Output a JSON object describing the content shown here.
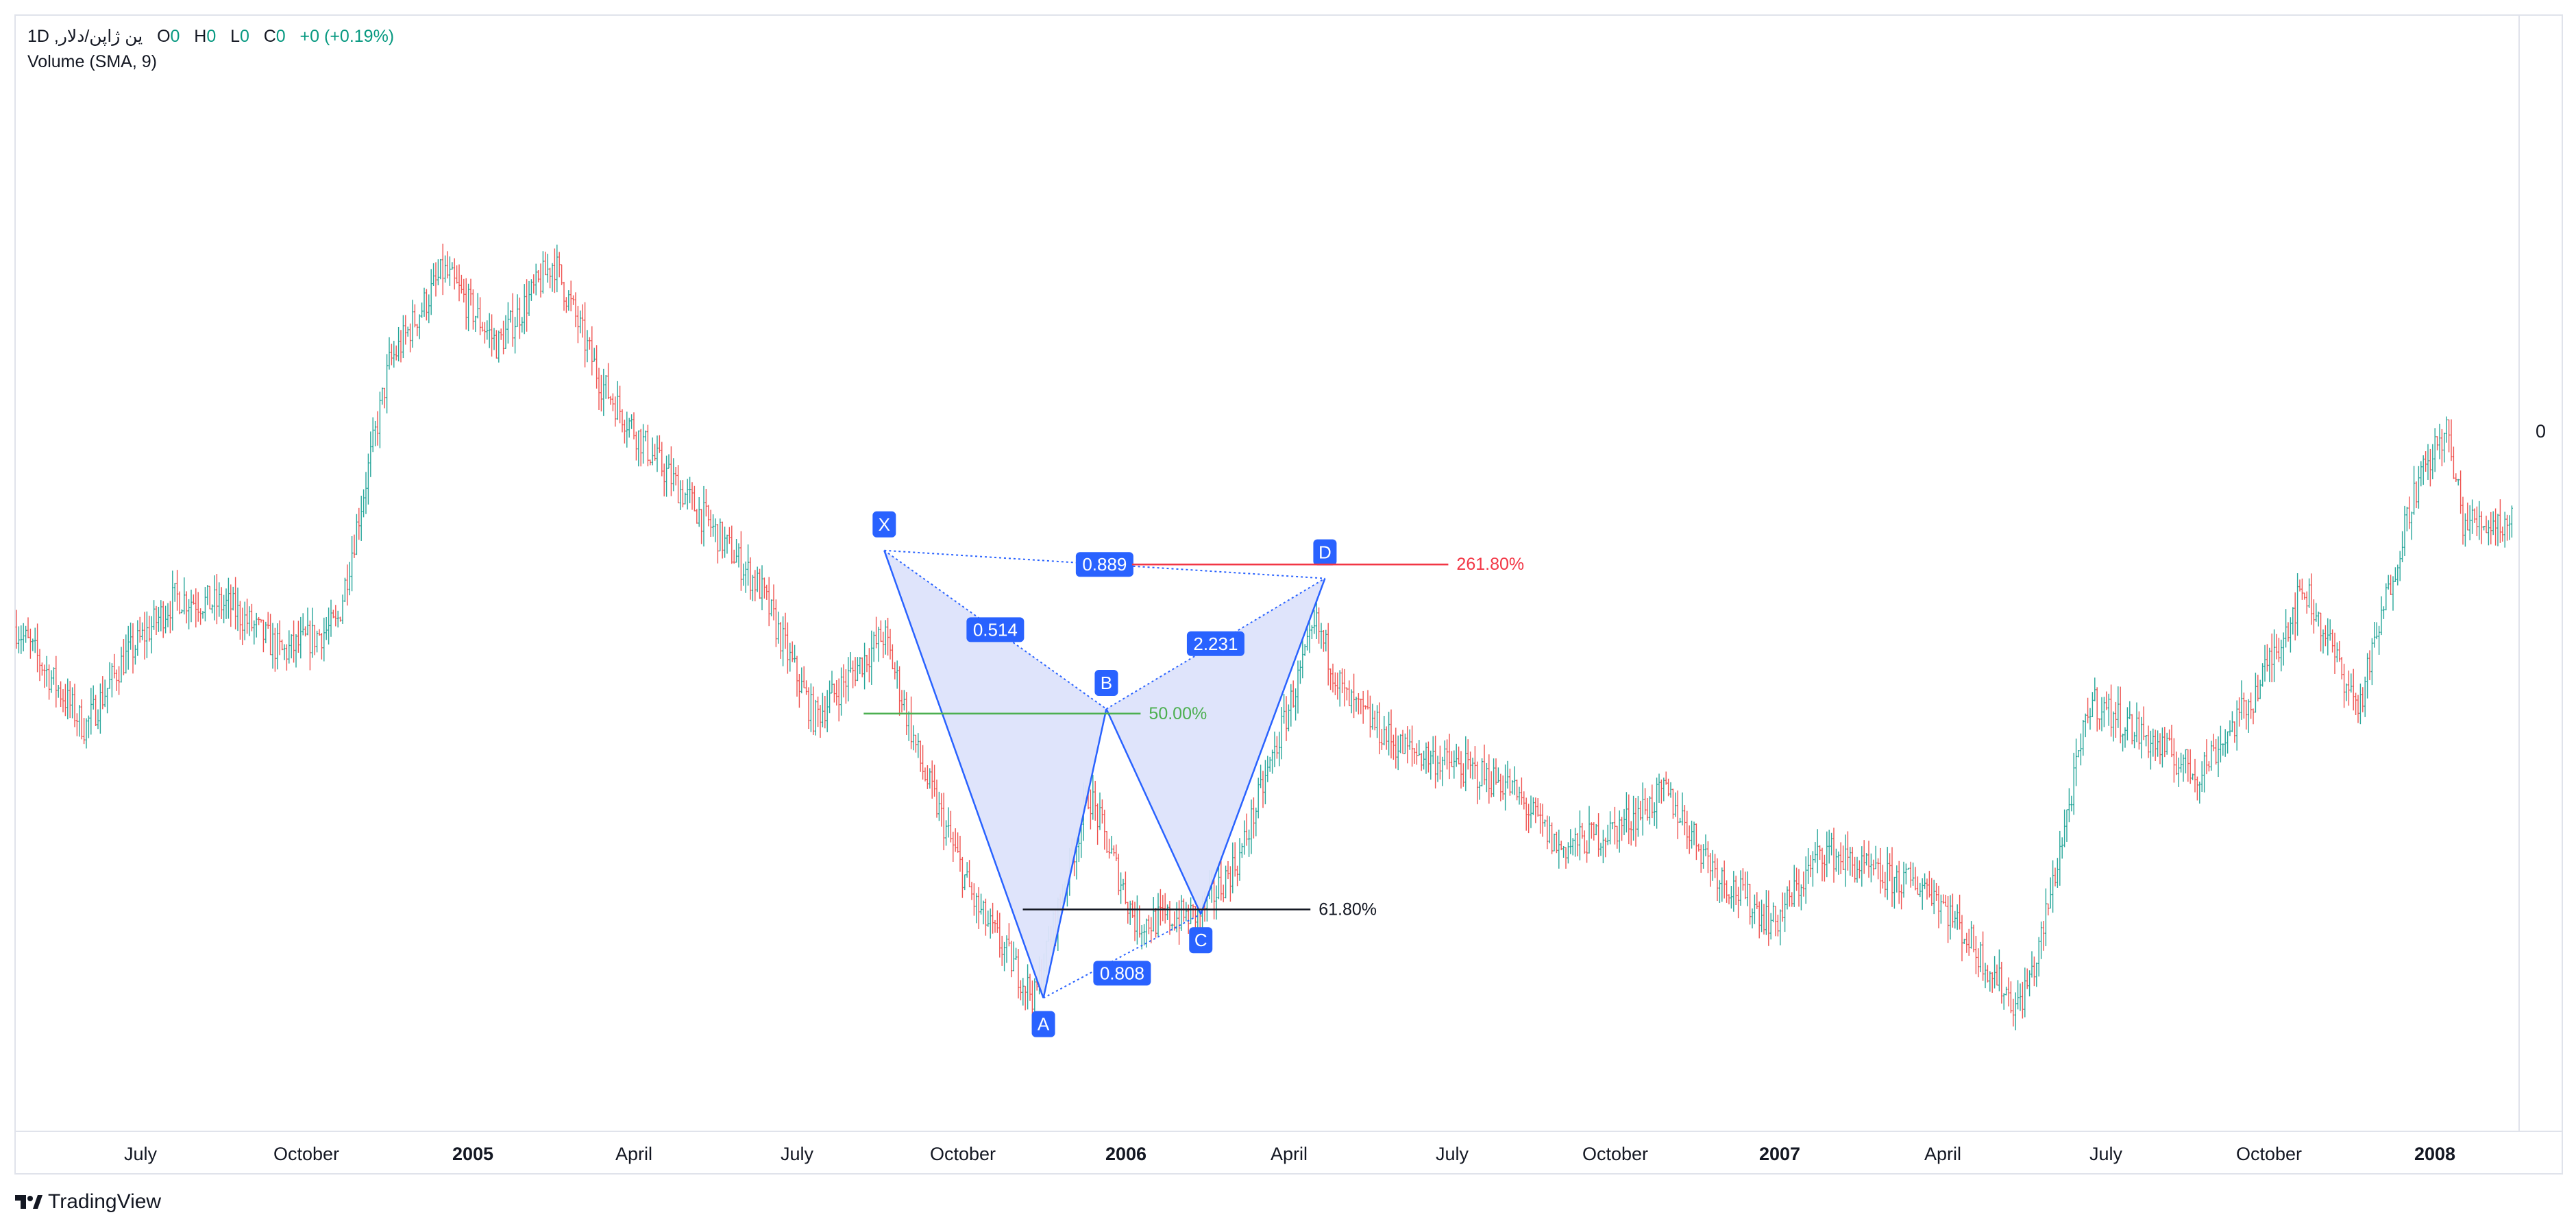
{
  "legend": {
    "symbol": "ين ژاپن/دلار, 1D",
    "open_label": "O",
    "open_value": "0",
    "high_label": "H",
    "high_value": "0",
    "low_label": "L",
    "low_value": "0",
    "close_label": "C",
    "close_value": "0",
    "change": "+0 (+0.19%)",
    "volume": "Volume (SMA, 9)"
  },
  "price_axis": {
    "last_value_label": "0"
  },
  "brand": {
    "name": "TradingView"
  },
  "colors": {
    "up_candle": "#26a69a",
    "down_candle": "#ef5350",
    "pattern_blue": "#2962ff",
    "pattern_fill": "#dde3fb",
    "fib_red": "#f23645",
    "fib_green": "#4caf50",
    "fib_black": "#131722"
  },
  "chart_data": {
    "type": "candlestick",
    "x_axis": {
      "ticks": [
        {
          "label": "July",
          "bold": false
        },
        {
          "label": "October",
          "bold": false
        },
        {
          "label": "2005",
          "bold": true
        },
        {
          "label": "April",
          "bold": false
        },
        {
          "label": "July",
          "bold": false
        },
        {
          "label": "October",
          "bold": false
        },
        {
          "label": "2006",
          "bold": true
        },
        {
          "label": "April",
          "bold": false
        },
        {
          "label": "July",
          "bold": false
        },
        {
          "label": "October",
          "bold": false
        },
        {
          "label": "2007",
          "bold": true
        },
        {
          "label": "April",
          "bold": false
        },
        {
          "label": "July",
          "bold": false
        },
        {
          "label": "October",
          "bold": false
        },
        {
          "label": "2008",
          "bold": true
        }
      ]
    },
    "price_trend": [
      {
        "t": "2004-05",
        "v": 0.44
      },
      {
        "t": "2004-06-10",
        "v": 0.33
      },
      {
        "t": "2004-07",
        "v": 0.4
      },
      {
        "t": "2004-08",
        "v": 0.47
      },
      {
        "t": "2004-09",
        "v": 0.46
      },
      {
        "t": "2004-10",
        "v": 0.41
      },
      {
        "t": "2004-11",
        "v": 0.44
      },
      {
        "t": "2004-12",
        "v": 0.72
      },
      {
        "t": "2005-01",
        "v": 0.82
      },
      {
        "t": "2005-02",
        "v": 0.74
      },
      {
        "t": "2005-03-05",
        "v": 0.83
      },
      {
        "t": "2005-04",
        "v": 0.7
      },
      {
        "t": "2005-05",
        "v": 0.62
      },
      {
        "t": "2005-06",
        "v": 0.55
      },
      {
        "t": "2005-07",
        "v": 0.48
      },
      {
        "t": "2005-08",
        "v": 0.34
      },
      {
        "t": "2005-09-10",
        "v": 0.43
      },
      {
        "t": "2005-10",
        "v": 0.29
      },
      {
        "t": "2005-11",
        "v": 0.14
      },
      {
        "t": "2005-12-05",
        "v": 0.04
      },
      {
        "t": "2006-01-05",
        "v": 0.26
      },
      {
        "t": "2006-02",
        "v": 0.12
      },
      {
        "t": "2006-03-10",
        "v": 0.13
      },
      {
        "t": "2006-04",
        "v": 0.19
      },
      {
        "t": "2006-05-15",
        "v": 0.44
      },
      {
        "t": "2006-06",
        "v": 0.36
      },
      {
        "t": "2006-07",
        "v": 0.31
      },
      {
        "t": "2006-08",
        "v": 0.29
      },
      {
        "t": "2006-09",
        "v": 0.27
      },
      {
        "t": "2006-10",
        "v": 0.2
      },
      {
        "t": "2006-11",
        "v": 0.22
      },
      {
        "t": "2006-12",
        "v": 0.26
      },
      {
        "t": "2007-01",
        "v": 0.17
      },
      {
        "t": "2007-02",
        "v": 0.12
      },
      {
        "t": "2007-03",
        "v": 0.2
      },
      {
        "t": "2007-04",
        "v": 0.17
      },
      {
        "t": "2007-05",
        "v": 0.16
      },
      {
        "t": "2007-06-20",
        "v": 0.03
      },
      {
        "t": "2007-07",
        "v": 0.08
      },
      {
        "t": "2007-08",
        "v": 0.36
      },
      {
        "t": "2007-09",
        "v": 0.32
      },
      {
        "t": "2007-10",
        "v": 0.28
      },
      {
        "t": "2007-11",
        "v": 0.36
      },
      {
        "t": "2007-12",
        "v": 0.48
      },
      {
        "t": "2008-01",
        "v": 0.35
      },
      {
        "t": "2008-02",
        "v": 0.58
      },
      {
        "t": "2008-02-20",
        "v": 0.65
      },
      {
        "t": "2008-03",
        "v": 0.55
      }
    ],
    "harmonic_pattern": {
      "points": [
        {
          "label": "X",
          "t": "2005-09-10",
          "v": 0.52
        },
        {
          "label": "A",
          "t": "2005-12-10",
          "v": 0.04
        },
        {
          "label": "B",
          "t": "2006-01-15",
          "v": 0.35
        },
        {
          "label": "C",
          "t": "2006-03-10",
          "v": 0.13
        },
        {
          "label": "D",
          "t": "2006-05-20",
          "v": 0.49
        }
      ],
      "ratios": [
        "0.514",
        "0.808",
        "2.231",
        "0.889"
      ]
    },
    "fib_levels": [
      {
        "label": "261.80%",
        "v": 0.505,
        "color": "#f23645"
      },
      {
        "label": "50.00%",
        "v": 0.345,
        "color": "#4caf50"
      },
      {
        "label": "61.80%",
        "v": 0.135,
        "color": "#131722"
      }
    ]
  }
}
